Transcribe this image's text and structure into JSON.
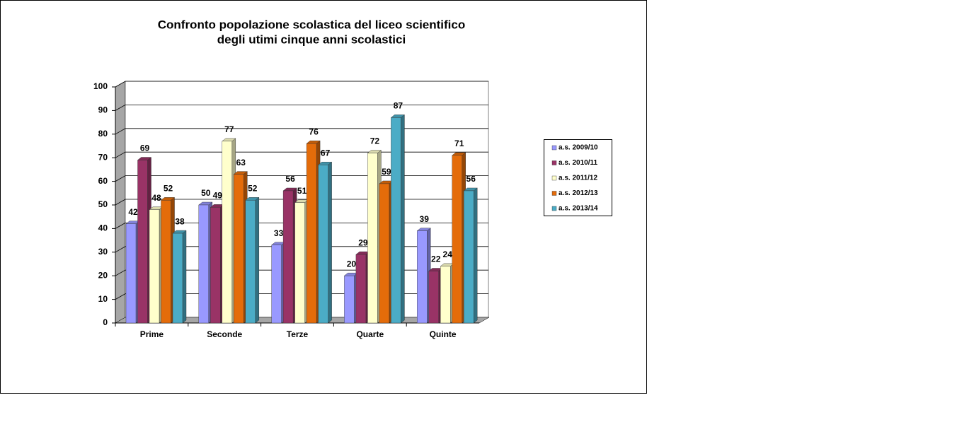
{
  "chart_data": {
    "type": "bar3d",
    "title": [
      "Confronto popolazione scolastica  del liceo scientifico",
      "degli utimi cinque anni  scolastici"
    ],
    "categories": [
      "Prime",
      "Seconde",
      "Terze",
      "Quarte",
      "Quinte"
    ],
    "series": [
      {
        "name": "a.s. 2009/10",
        "color": "#9999ff",
        "values": [
          42,
          50,
          33,
          20,
          39
        ]
      },
      {
        "name": "a.s. 2010/11",
        "color": "#993366",
        "values": [
          69,
          49,
          56,
          29,
          22
        ]
      },
      {
        "name": "a.s. 2011/12",
        "color": "#ffffcc",
        "values": [
          48,
          77,
          51,
          72,
          24
        ]
      },
      {
        "name": "a.s. 2012/13",
        "color": "#e46c0a",
        "values": [
          52,
          63,
          76,
          59,
          71
        ]
      },
      {
        "name": "a.s. 2013/14",
        "color": "#4bacc6",
        "values": [
          38,
          52,
          67,
          87,
          56
        ]
      }
    ],
    "ylim": [
      0,
      100
    ],
    "yticks": [
      0,
      10,
      20,
      30,
      40,
      50,
      60,
      70,
      80,
      90,
      100
    ],
    "grid": true,
    "legend": "right"
  }
}
